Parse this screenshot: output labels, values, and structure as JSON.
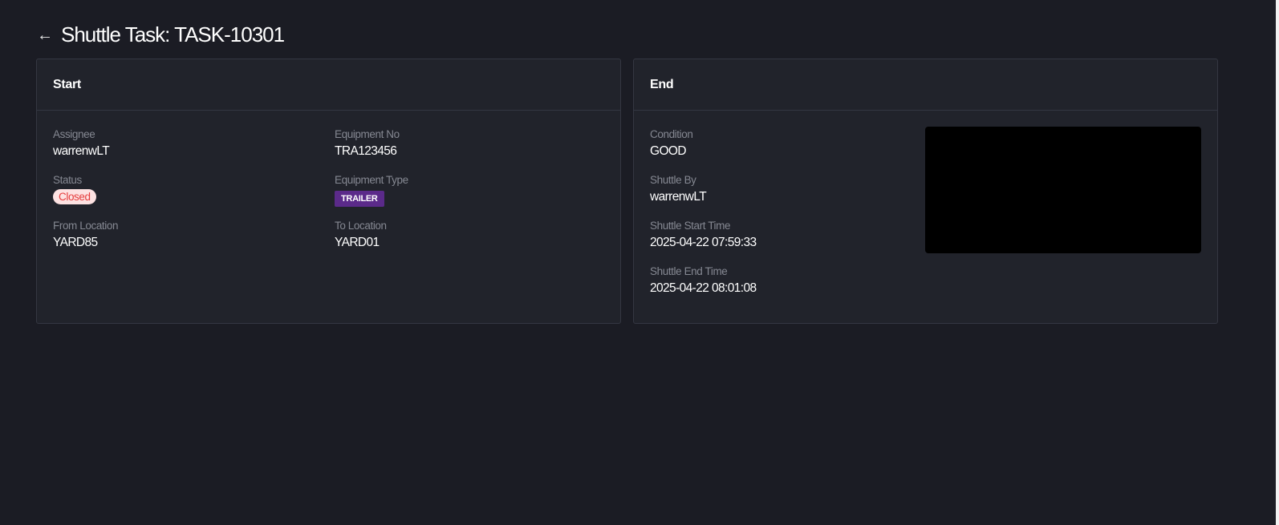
{
  "page": {
    "title": "Shuttle Task: TASK-10301",
    "back_icon": "arrow-left-icon"
  },
  "start": {
    "heading": "Start",
    "fields": [
      {
        "label": "Assignee",
        "value": "warrenwLT"
      },
      {
        "label": "Equipment No",
        "value": "TRA123456"
      },
      {
        "label": "Status",
        "value": "Closed"
      },
      {
        "label": "Equipment Type",
        "value": "TRAILER"
      },
      {
        "label": "From Location",
        "value": "YARD85"
      },
      {
        "label": "To Location",
        "value": "YARD01"
      }
    ]
  },
  "end": {
    "heading": "End",
    "fields": [
      {
        "label": "Condition",
        "value": "GOOD"
      },
      {
        "label": "Shuttle By",
        "value": "warrenwLT"
      },
      {
        "label": "Shuttle Start Time",
        "value": "2025-04-22 07:59:33"
      },
      {
        "label": "Shuttle End Time",
        "value": "2025-04-22 08:01:08"
      }
    ]
  },
  "colors": {
    "background": "#1b1c24",
    "card": "#21232b",
    "status_closed_bg": "#fde2e2",
    "status_closed_text": "#e53c3c",
    "trailer_badge": "#5b2a8a"
  }
}
